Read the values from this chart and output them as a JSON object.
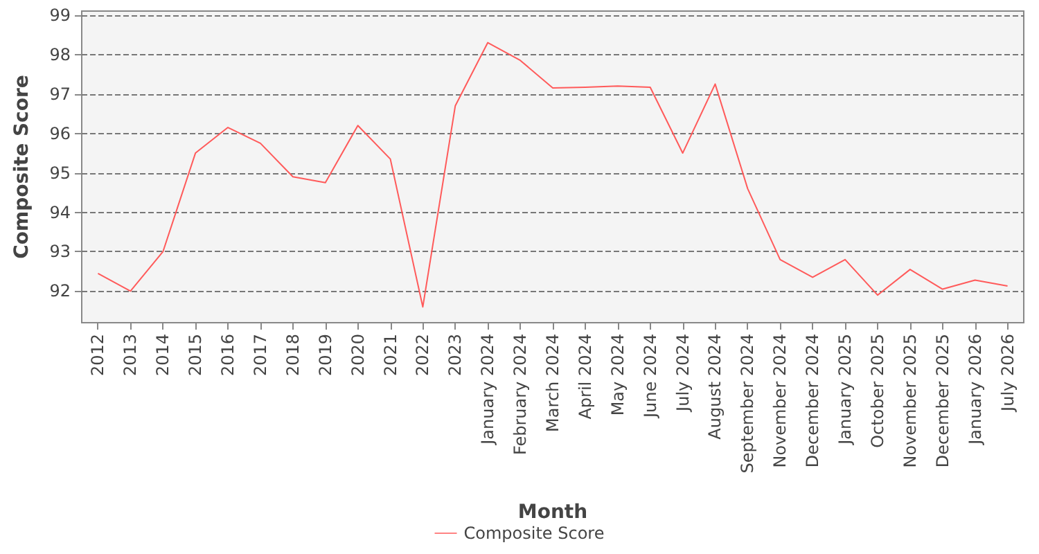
{
  "chart_data": {
    "type": "line",
    "xlabel": "Month",
    "ylabel": "Composite Score",
    "categories": [
      "2012",
      "2013",
      "2014",
      "2015",
      "2016",
      "2017",
      "2018",
      "2019",
      "2020",
      "2021",
      "2022",
      "2023",
      "January 2024",
      "February 2024",
      "March 2024",
      "April 2024",
      "May 2024",
      "June 2024",
      "July 2024",
      "August 2024",
      "September 2024",
      "November 2024",
      "December 2024",
      "January 2025",
      "October 2025",
      "November 2025",
      "December 2025",
      "January 2026",
      "July 2026"
    ],
    "series": [
      {
        "name": "Composite Score",
        "color": "#ff5a5a",
        "values": [
          92.45,
          92.0,
          93.0,
          95.5,
          96.15,
          95.75,
          94.9,
          94.75,
          96.2,
          95.35,
          91.6,
          96.7,
          98.3,
          97.85,
          97.15,
          97.17,
          97.2,
          97.17,
          95.5,
          97.25,
          94.6,
          92.8,
          92.35,
          92.8,
          91.9,
          92.55,
          92.05,
          92.28,
          92.13
        ]
      }
    ],
    "ylim": [
      91.2,
      99.1
    ],
    "yticks": [
      92,
      93,
      94,
      95,
      96,
      97,
      98,
      99
    ],
    "grid": "y",
    "legend": "bottom",
    "marker": "none",
    "line_style": "solid"
  }
}
